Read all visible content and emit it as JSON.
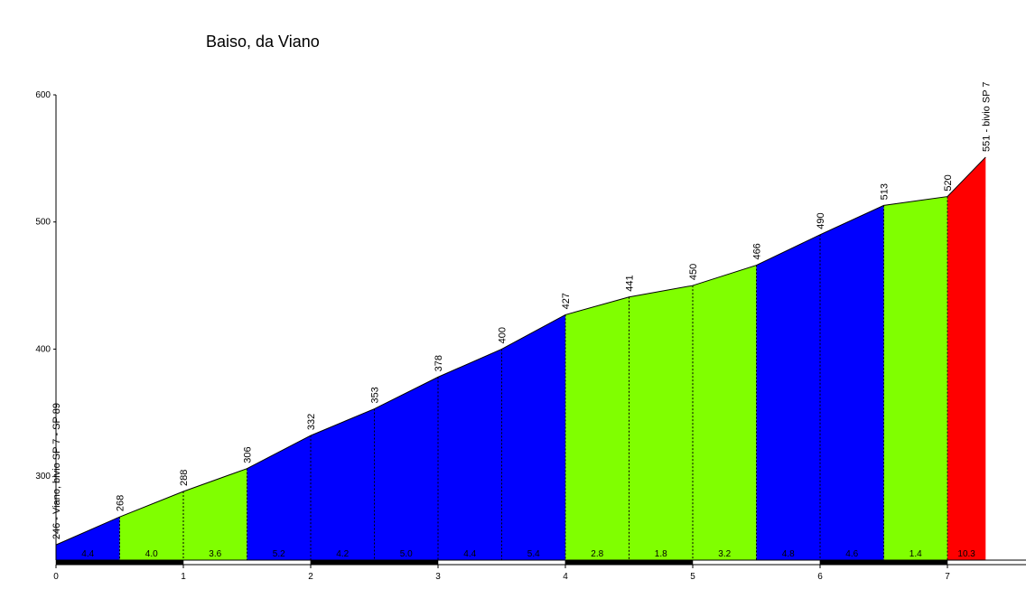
{
  "chart_data": {
    "type": "area",
    "title": "Baiso, da Viano",
    "x": [
      0,
      0.5,
      1,
      1.5,
      2,
      2.5,
      3,
      3.5,
      4,
      4.5,
      5,
      5.5,
      6,
      6.5,
      7,
      7.3
    ],
    "values": [
      246,
      268,
      288,
      306,
      332,
      353,
      378,
      400,
      427,
      441,
      450,
      466,
      490,
      513,
      520,
      551
    ],
    "value_labels": [
      "246 - Viano, bivio SP 7 - SP 89",
      "268",
      "288",
      "306",
      "332",
      "353",
      "378",
      "400",
      "427",
      "441",
      "450",
      "466",
      "490",
      "513",
      "520",
      "551 - bivio SP 7"
    ],
    "segments": {
      "values": [
        4.4,
        4.0,
        3.6,
        5.2,
        4.2,
        5.0,
        4.4,
        5.4,
        2.8,
        1.8,
        3.2,
        4.8,
        4.6,
        1.4,
        10.3
      ],
      "value_labels": [
        "4.4",
        "4.0",
        "3.6",
        "5.2",
        "4.2",
        "5.0",
        "4.4",
        "5.4",
        "2.8",
        "1.8",
        "3.2",
        "4.8",
        "4.6",
        "1.4",
        "10.3"
      ],
      "colors": [
        "#0000ff",
        "#80ff00",
        "#80ff00",
        "#0000ff",
        "#0000ff",
        "#0000ff",
        "#0000ff",
        "#0000ff",
        "#80ff00",
        "#80ff00",
        "#80ff00",
        "#0000ff",
        "#0000ff",
        "#80ff00",
        "#ff0000"
      ]
    },
    "xlim": [
      0,
      7.6
    ],
    "xticks": [
      0,
      1,
      2,
      3,
      4,
      5,
      6,
      7
    ],
    "ylim": [
      234,
      600
    ],
    "yticks": [
      300,
      400,
      500,
      600
    ]
  }
}
